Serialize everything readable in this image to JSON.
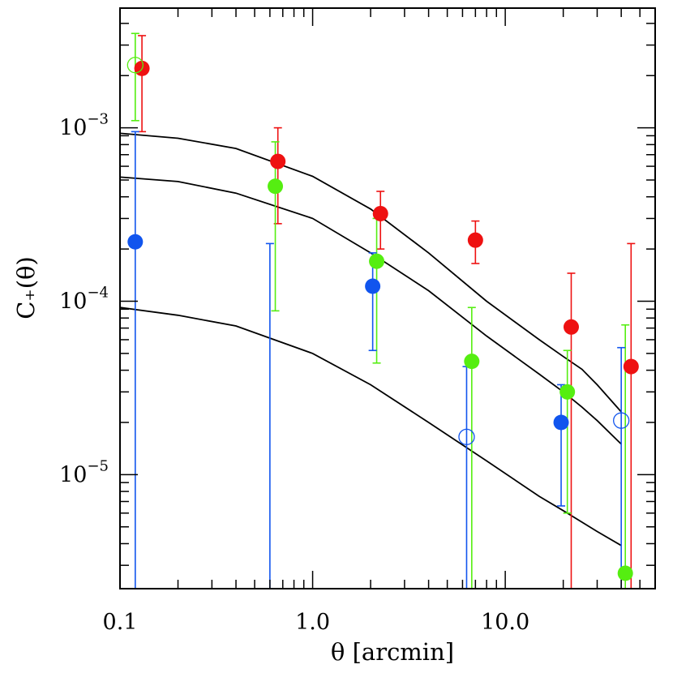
{
  "chart_data": {
    "type": "scatter",
    "title": "",
    "xlabel": "θ [arcmin]",
    "ylabel": "C₊(θ)",
    "xscale": "log",
    "yscale": "log",
    "xlim": [
      0.1,
      60
    ],
    "ylim": [
      2.2e-06,
      0.0049
    ],
    "grid": false,
    "legend": "none",
    "x_tick_labels": [
      "0.1",
      "1.0",
      "10.0"
    ],
    "x_tick_values": [
      0.1,
      1.0,
      10.0
    ],
    "y_tick_values": [
      1e-05,
      0.0001,
      0.001
    ],
    "y_tick_labels": [
      {
        "base": "10",
        "exp": "−5"
      },
      {
        "base": "10",
        "exp": "−4"
      },
      {
        "base": "10",
        "exp": "−3"
      }
    ],
    "series": [
      {
        "color": "#ee1111",
        "points": [
          {
            "x": 0.13,
            "y": 0.0022,
            "lo": 0.00095,
            "hi": 0.0034,
            "filled": true
          },
          {
            "x": 0.66,
            "y": 0.00064,
            "lo": 0.00028,
            "hi": 0.001,
            "filled": true
          },
          {
            "x": 2.25,
            "y": 0.00032,
            "lo": 0.0002,
            "hi": 0.00043,
            "filled": true
          },
          {
            "x": 7.0,
            "y": 0.000225,
            "lo": 0.000165,
            "hi": 0.00029,
            "filled": true
          },
          {
            "x": 22.0,
            "y": 7.1e-05,
            "lo": 2.2e-06,
            "hi": 0.000145,
            "filled": true
          },
          {
            "x": 45.0,
            "y": 4.2e-05,
            "lo": 2.2e-06,
            "hi": 0.000215,
            "filled": true
          }
        ]
      },
      {
        "color": "#55ee11",
        "points": [
          {
            "x": 0.12,
            "y": 0.0023,
            "lo": 0.0011,
            "hi": 0.0035,
            "filled": false
          },
          {
            "x": 0.64,
            "y": 0.00046,
            "lo": 8.8e-05,
            "hi": 0.00083,
            "filled": true
          },
          {
            "x": 2.15,
            "y": 0.00017,
            "lo": 4.4e-05,
            "hi": 0.0003,
            "filled": true
          },
          {
            "x": 6.7,
            "y": 4.5e-05,
            "lo": 2.2e-06,
            "hi": 9.2e-05,
            "filled": true
          },
          {
            "x": 21.0,
            "y": 3e-05,
            "lo": 6e-06,
            "hi": 5.2e-05,
            "filled": true
          },
          {
            "x": 42.0,
            "y": 2.7e-06,
            "lo": 2.2e-06,
            "hi": 7.3e-05,
            "filled": true
          }
        ]
      },
      {
        "color": "#1155ee",
        "points": [
          {
            "x": 0.12,
            "y": 0.00022,
            "lo": 2.2e-06,
            "hi": 0.00095,
            "filled": true
          },
          {
            "x": 0.6,
            "y": 2.2e-06,
            "lo": 2.2e-06,
            "hi": 0.000215,
            "filled": true,
            "off_axis": true
          },
          {
            "x": 2.05,
            "y": 0.000122,
            "lo": 5.2e-05,
            "hi": 0.00019,
            "filled": true
          },
          {
            "x": 6.3,
            "y": 1.65e-05,
            "lo": 2.2e-06,
            "hi": 4.2e-05,
            "filled": false
          },
          {
            "x": 19.5,
            "y": 2e-05,
            "lo": 6.6e-06,
            "hi": 3.3e-05,
            "filled": true
          },
          {
            "x": 40.0,
            "y": 2.05e-05,
            "lo": 2.2e-06,
            "hi": 5.4e-05,
            "filled": false
          }
        ]
      }
    ],
    "model_curves": [
      {
        "color": "#000000",
        "x": [
          0.1,
          0.2,
          0.4,
          1.0,
          2.0,
          4.0,
          8.0,
          15.0,
          20.0,
          25.0,
          30.0,
          40.0
        ],
        "y": [
          0.00093,
          0.00087,
          0.00076,
          0.000525,
          0.00034,
          0.00019,
          0.0001,
          6e-05,
          4.8e-05,
          4.05e-05,
          3.3e-05,
          2.3e-05
        ]
      },
      {
        "color": "#000000",
        "x": [
          0.1,
          0.2,
          0.4,
          1.0,
          2.0,
          4.0,
          8.0,
          15.0,
          20.0,
          25.0,
          30.0,
          40.0
        ],
        "y": [
          0.00052,
          0.00049,
          0.00042,
          0.0003,
          0.00019,
          0.000115,
          6.3e-05,
          3.8e-05,
          3e-05,
          2.45e-05,
          2.05e-05,
          1.5e-05
        ]
      },
      {
        "color": "#000000",
        "x": [
          0.1,
          0.2,
          0.4,
          1.0,
          2.0,
          4.0,
          8.0,
          15.0,
          20.0,
          30.0,
          40.0
        ],
        "y": [
          9.2e-05,
          8.3e-05,
          7.2e-05,
          5e-05,
          3.3e-05,
          2e-05,
          1.2e-05,
          7.5e-06,
          6.2e-06,
          4.7e-06,
          3.9e-06
        ]
      }
    ]
  }
}
